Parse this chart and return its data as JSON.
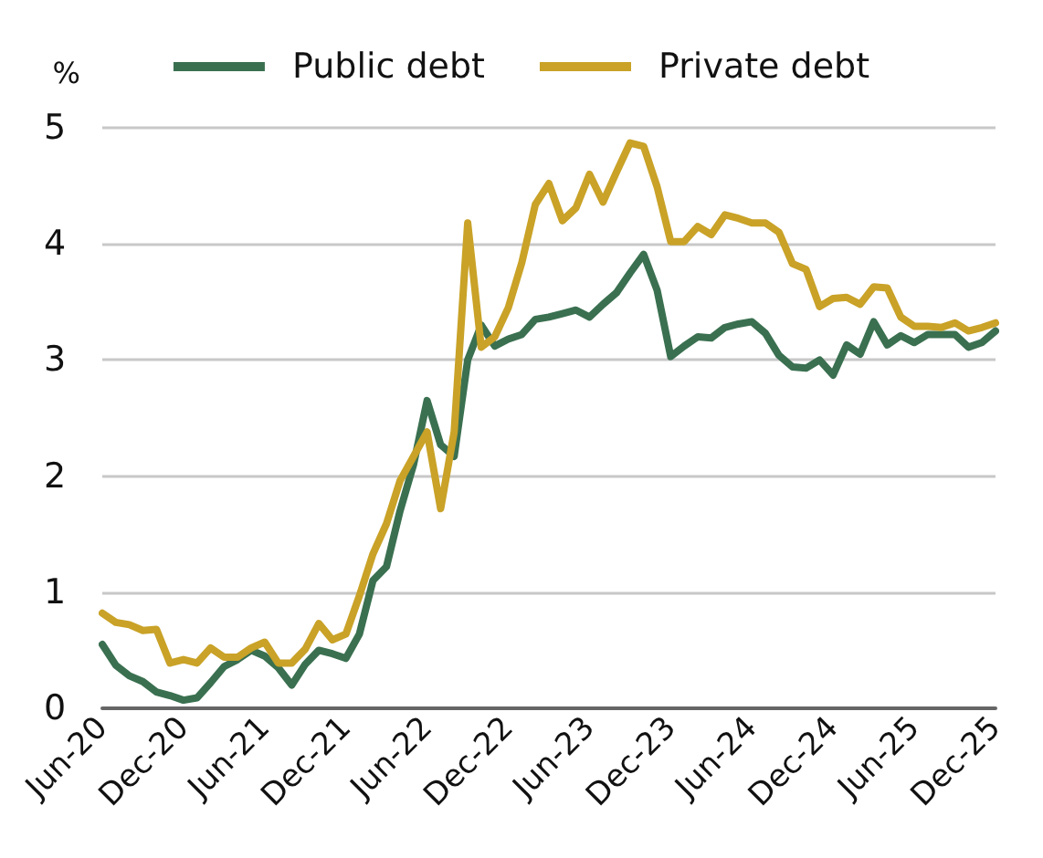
{
  "chart_data": {
    "type": "line",
    "ylabel": "%",
    "categories": [
      "Jun-20",
      null,
      null,
      null,
      null,
      null,
      "Dec-20",
      null,
      null,
      null,
      null,
      null,
      "Jun-21",
      null,
      null,
      null,
      null,
      null,
      "Dec-21",
      null,
      null,
      null,
      null,
      null,
      "Jun-22",
      null,
      null,
      null,
      null,
      null,
      "Dec-22",
      null,
      null,
      null,
      null,
      null,
      "Jun-23",
      null,
      null,
      null,
      null,
      null,
      "Dec-23",
      null,
      null,
      null,
      null,
      null,
      "Jun-24",
      null,
      null,
      null,
      null,
      null,
      "Dec-24",
      null,
      null,
      null,
      null,
      null,
      "Jun-25",
      null,
      null,
      null,
      null,
      null,
      "Dec-25"
    ],
    "series": [
      {
        "name": "Public debt",
        "color": "#3a7050",
        "values": [
          0.55,
          0.37,
          0.28,
          0.23,
          0.14,
          0.11,
          0.07,
          0.09,
          0.22,
          0.36,
          0.42,
          0.5,
          0.45,
          0.35,
          0.2,
          0.38,
          0.5,
          0.47,
          0.43,
          0.64,
          1.1,
          1.22,
          1.7,
          2.1,
          2.65,
          2.27,
          2.17,
          3.0,
          3.3,
          3.12,
          3.18,
          3.22,
          3.35,
          3.37,
          3.4,
          3.43,
          3.37,
          3.48,
          3.58,
          3.75,
          3.91,
          3.6,
          3.03,
          3.12,
          3.2,
          3.19,
          3.28,
          3.31,
          3.33,
          3.23,
          3.04,
          2.94,
          2.93,
          3.0,
          2.87,
          3.13,
          3.05,
          3.33,
          3.13,
          3.21,
          3.15,
          3.22,
          3.22,
          3.22,
          3.11,
          3.15,
          3.25
        ]
      },
      {
        "name": "Private debt",
        "color": "#c9a227",
        "values": [
          0.82,
          0.74,
          0.72,
          0.67,
          0.68,
          0.39,
          0.42,
          0.39,
          0.52,
          0.44,
          0.44,
          0.52,
          0.57,
          0.39,
          0.39,
          0.51,
          0.73,
          0.59,
          0.64,
          0.97,
          1.33,
          1.59,
          1.96,
          2.17,
          2.38,
          1.72,
          2.38,
          4.18,
          3.11,
          3.2,
          3.45,
          3.84,
          4.34,
          4.52,
          4.2,
          4.31,
          4.6,
          4.36,
          4.62,
          4.87,
          4.84,
          4.49,
          4.02,
          4.02,
          4.15,
          4.08,
          4.25,
          4.22,
          4.18,
          4.18,
          4.1,
          3.83,
          3.78,
          3.46,
          3.53,
          3.54,
          3.48,
          3.63,
          3.62,
          3.37,
          3.29,
          3.29,
          3.28,
          3.32,
          3.25,
          3.28,
          3.32
        ]
      }
    ],
    "ylim": [
      0,
      5
    ],
    "yticks": [
      0,
      1,
      2,
      3,
      4,
      5
    ],
    "grid": "y",
    "legend": "top",
    "marker": "none",
    "line_style": "solid"
  }
}
